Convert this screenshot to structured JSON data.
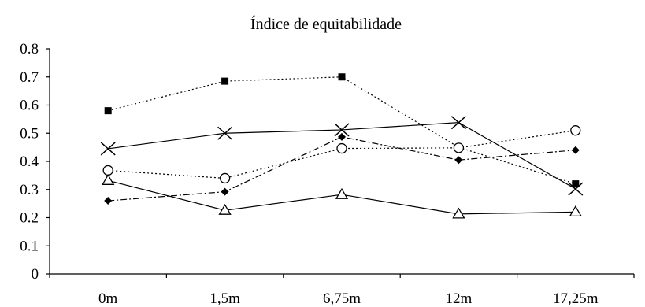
{
  "chart_data": {
    "type": "line",
    "title": "Índice de equitabilidade",
    "xlabel": "",
    "ylabel": "",
    "categories": [
      "0m",
      "1,5m",
      "6,75m",
      "12m",
      "17,25m"
    ],
    "ylim": [
      0,
      0.8
    ],
    "yticks": [
      "0",
      "0.1",
      "0.2",
      "0.3",
      "0.4",
      "0.5",
      "0.6",
      "0.7",
      "0.8"
    ],
    "grid": false,
    "legend": "none",
    "series": [
      {
        "values": [
          0.58,
          0.685,
          0.7,
          0.45,
          0.32
        ],
        "marker": "filled-square",
        "line": "dotted",
        "color": "#000000"
      },
      {
        "values": [
          0.445,
          0.5,
          0.512,
          0.538,
          0.302
        ],
        "marker": "x",
        "line": "solid",
        "color": "#000000"
      },
      {
        "values": [
          0.368,
          0.34,
          0.446,
          0.448,
          0.51
        ],
        "marker": "open-circle",
        "line": "dotted",
        "color": "#000000"
      },
      {
        "values": [
          0.26,
          0.292,
          0.487,
          0.405,
          0.44
        ],
        "marker": "filled-diamond",
        "line": "dash-dot",
        "color": "#000000"
      },
      {
        "values": [
          0.332,
          0.226,
          0.282,
          0.213,
          0.22
        ],
        "marker": "open-triangle",
        "line": "solid",
        "color": "#000000"
      }
    ]
  }
}
